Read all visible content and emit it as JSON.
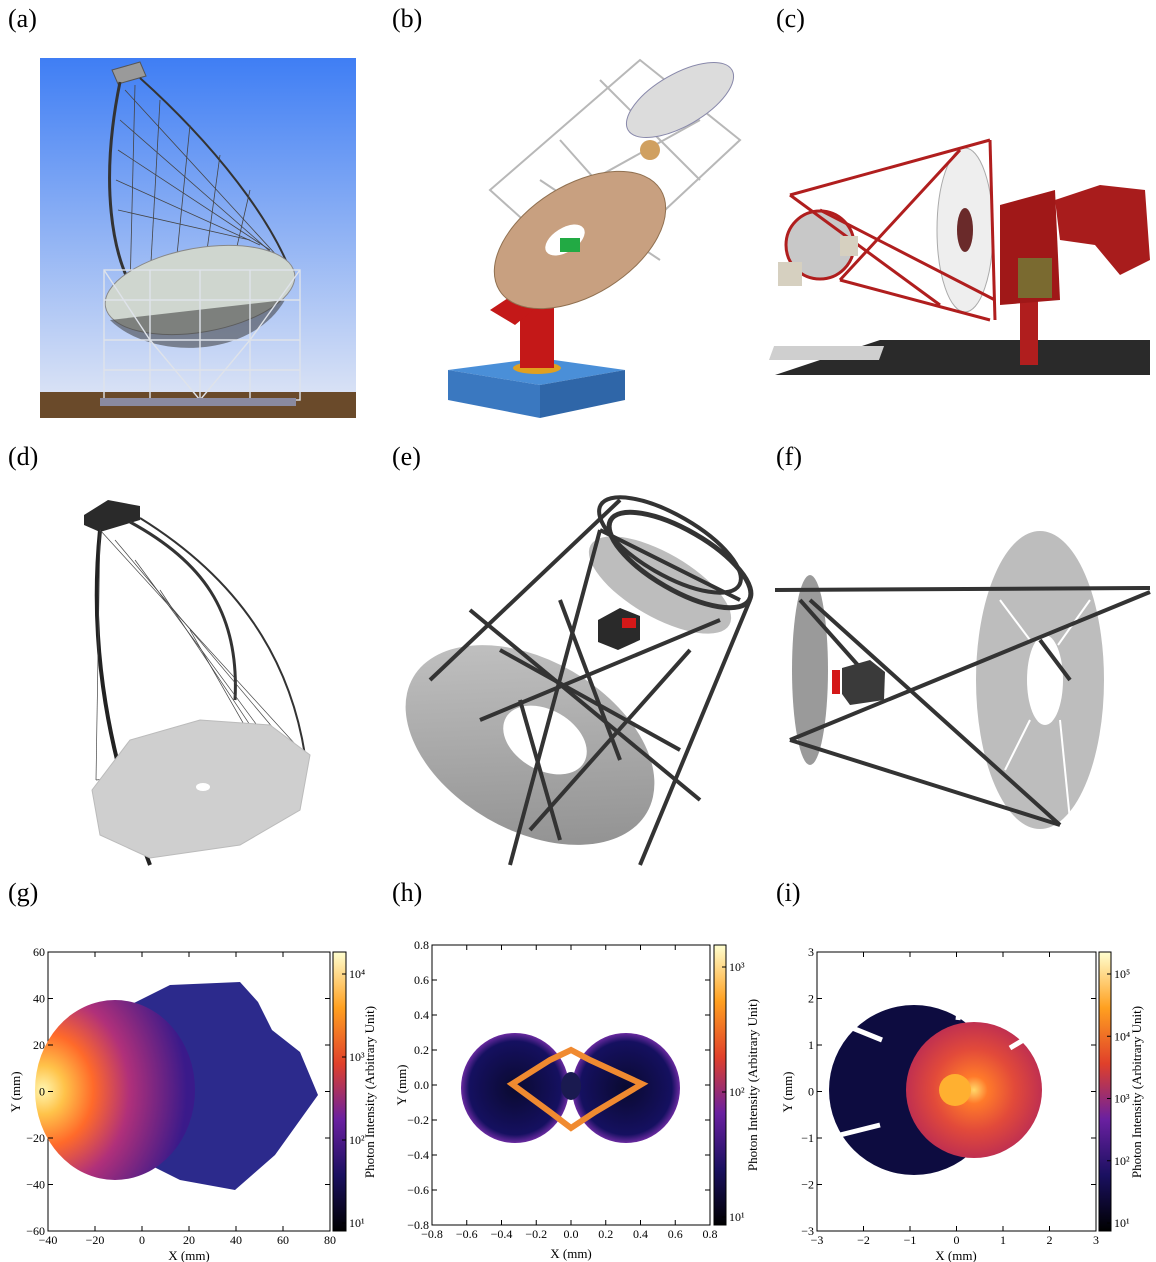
{
  "panels": {
    "a": "(a)",
    "b": "(b)",
    "c": "(c)",
    "d": "(d)",
    "e": "(e)",
    "f": "(f)",
    "g": "(g)",
    "h": "(h)",
    "i": "(i)"
  },
  "colors": {
    "sky_top": "#3f7ef4",
    "sky_bottom": "#dfe6f6",
    "ground": "#6a4a2a",
    "mirror_gray": "#bdbdbd",
    "structure_dark": "#333333",
    "red_structure": "#b01e1e",
    "base_blue": "#4a8fd8"
  },
  "chart_data": [
    {
      "type": "heatmap",
      "xlabel": "X (mm)",
      "ylabel": "Y (mm)",
      "colorbar_label": "Photon Intensity (Arbitrary Unit)",
      "xlim": [
        -40,
        80
      ],
      "ylim": [
        -60,
        60
      ],
      "xticks": [
        "−40",
        "−20",
        "0",
        "20",
        "40",
        "60",
        "80"
      ],
      "yticks": [
        "−60",
        "−40",
        "−20",
        "0",
        "20",
        "40",
        "60"
      ],
      "colorbar_ticks": [
        "10¹",
        "10²",
        "10³",
        "10⁴"
      ],
      "log_scale": true
    },
    {
      "type": "heatmap",
      "xlabel": "X (mm)",
      "ylabel": "Y (mm)",
      "colorbar_label": "Photon Intensity (Arbitrary Unit)",
      "xlim": [
        -0.8,
        0.8
      ],
      "ylim": [
        -0.8,
        0.8
      ],
      "xticks": [
        "−0.8",
        "−0.6",
        "−0.4",
        "−0.2",
        "0.0",
        "0.2",
        "0.4",
        "0.6",
        "0.8"
      ],
      "yticks": [
        "−0.8",
        "−0.6",
        "−0.4",
        "−0.2",
        "0.0",
        "0.2",
        "0.4",
        "0.6",
        "0.8"
      ],
      "colorbar_ticks": [
        "10¹",
        "10²",
        "10³"
      ],
      "log_scale": true
    },
    {
      "type": "heatmap",
      "xlabel": "X (mm)",
      "ylabel": "Y (mm)",
      "colorbar_label": "Photon Intensity (Arbitrary Unit)",
      "xlim": [
        -3,
        3
      ],
      "ylim": [
        -3,
        3
      ],
      "xticks": [
        "−3",
        "−2",
        "−1",
        "0",
        "1",
        "2",
        "3"
      ],
      "yticks": [
        "−3",
        "−2",
        "−1",
        "0",
        "1",
        "2",
        "3"
      ],
      "colorbar_ticks": [
        "10¹",
        "10²",
        "10³",
        "10⁴",
        "10⁵"
      ],
      "log_scale": true
    }
  ]
}
